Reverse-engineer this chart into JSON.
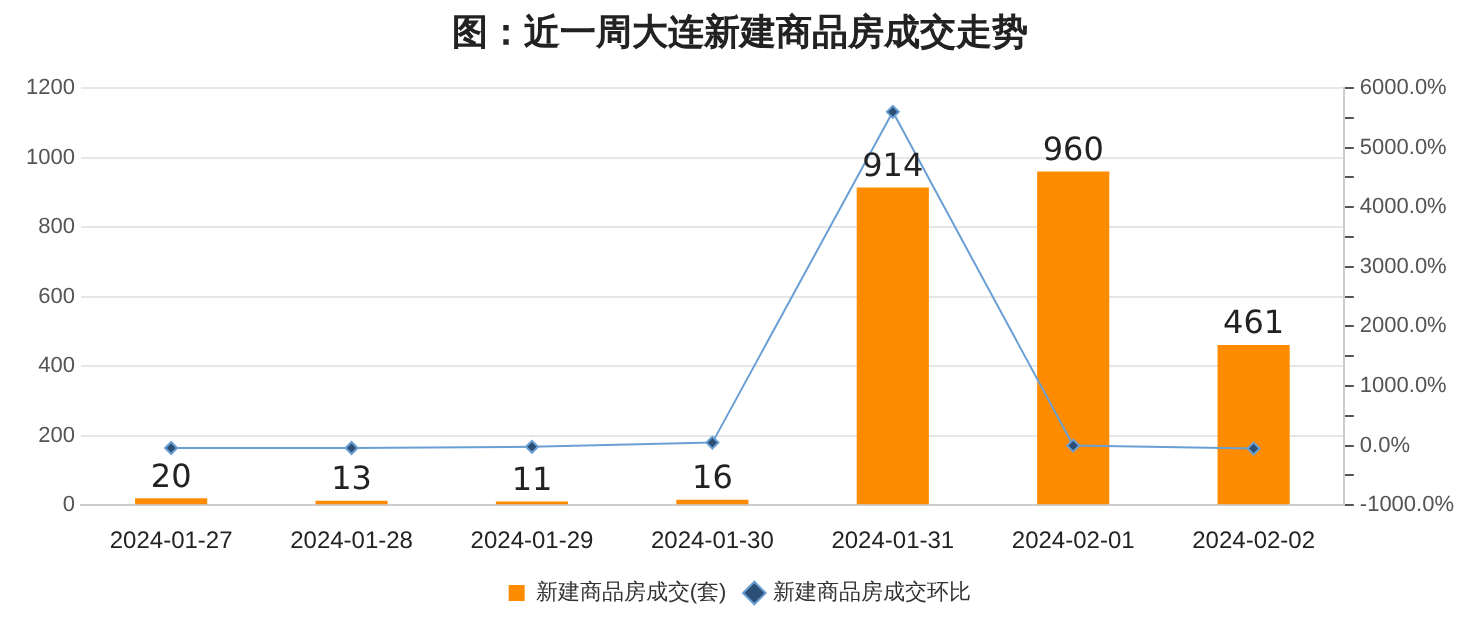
{
  "chart_data": {
    "type": "bar",
    "title": "图：近一周大连新建商品房成交走势",
    "categories": [
      "2024-01-27",
      "2024-01-28",
      "2024-01-29",
      "2024-01-30",
      "2024-01-31",
      "2024-02-01",
      "2024-02-02"
    ],
    "series": [
      {
        "name": "新建商品房成交(套)",
        "color": "#ff8c00",
        "values": [
          20,
          13,
          11,
          16,
          914,
          960,
          461
        ],
        "value_labels": [
          "20",
          "13",
          "11",
          "16",
          "914",
          "960",
          "461"
        ]
      },
      {
        "name": "新建商品房成交环比",
        "type": "line",
        "axis": "y2",
        "color": "#6a9fd4",
        "values": [
          -40,
          -40,
          -20,
          50,
          5600,
          0,
          -50
        ]
      }
    ],
    "ylim": [
      0,
      1200
    ],
    "yticks": [
      0,
      200,
      400,
      600,
      800,
      1000,
      1200
    ],
    "y2lim": [
      -1000,
      6000
    ],
    "y2ticks": [
      {
        "value": -1000,
        "label": "-1000.0%"
      },
      {
        "value": -500,
        "label": null
      },
      {
        "value": 0,
        "label": "0.0%"
      },
      {
        "value": 500,
        "label": null
      },
      {
        "value": 1000,
        "label": "1000.0%"
      },
      {
        "value": 1500,
        "label": null
      },
      {
        "value": 2000,
        "label": "2000.0%"
      },
      {
        "value": 2500,
        "label": null
      },
      {
        "value": 3000,
        "label": "3000.0%"
      },
      {
        "value": 3500,
        "label": null
      },
      {
        "value": 4000,
        "label": "4000.0%"
      },
      {
        "value": 4500,
        "label": null
      },
      {
        "value": 5000,
        "label": "5000.0%"
      },
      {
        "value": 5500,
        "label": null
      },
      {
        "value": 6000,
        "label": "6000.0%"
      }
    ],
    "grid": "y",
    "legend": "bottom",
    "marker": "diamond",
    "line_style": "solid"
  }
}
